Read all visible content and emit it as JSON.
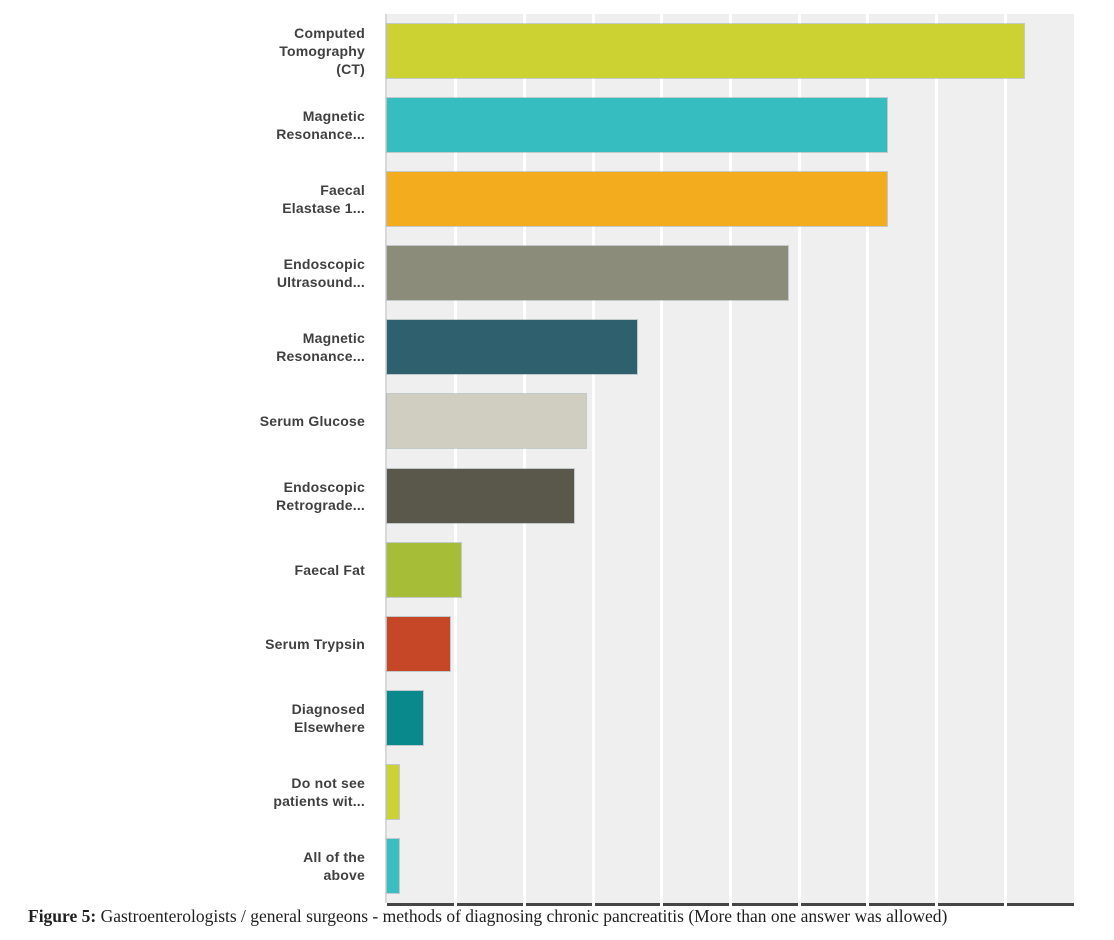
{
  "figure": {
    "caption_prefix": "Figure 5:",
    "caption_text": " Gastroenterologists / general surgeons - methods of diagnosing chronic pancreatitis (More than one answer was allowed)"
  },
  "chart_data": {
    "type": "bar",
    "orientation": "horizontal",
    "title": "",
    "xlabel": "",
    "ylabel": "",
    "categories": [
      "Computed Tomography (CT)",
      "Magnetic Resonance...",
      "Faecal Elastase 1...",
      "Endoscopic Ultrasound...",
      "Magnetic Resonance...",
      "Serum Glucose",
      "Endoscopic Retrograde...",
      "Faecal Fat",
      "Serum Trypsin",
      "Diagnosed Elsewhere",
      "Do not see patients wit...",
      "All of the above"
    ],
    "display_labels": [
      "Computed\nTomography\n(CT)",
      "Magnetic\nResonance...",
      "Faecal\nElastase 1...",
      "Endoscopic\nUltrasound...",
      "Magnetic\nResonance...",
      "Serum Glucose",
      "Endoscopic\nRetrograde...",
      "Faecal Fat",
      "Serum Trypsin",
      "Diagnosed\nElsewhere",
      "Do not see\npatients wit...",
      "All of the\nabove"
    ],
    "values": [
      92.7,
      72.8,
      72.8,
      58.4,
      36.4,
      29.0,
      27.2,
      10.8,
      9.2,
      5.3,
      1.8,
      1.8
    ],
    "values_unit": "percent",
    "colors": [
      "#cbd231",
      "#36bdbf",
      "#f3ac1e",
      "#8b8d7a",
      "#2f606e",
      "#cfcec0",
      "#5a584a",
      "#a6bd38",
      "#c64727",
      "#09898c",
      "#cbd231",
      "#39bfc1"
    ],
    "xlim": [
      0,
      100
    ],
    "gridline_interval_percent": 10,
    "grid": true,
    "legend": "none",
    "plot_bg_color": "#efefef",
    "gridline_color": "#ffffff",
    "y_axis_line_color": "#d9d9d9",
    "baseline_color": "#454545",
    "label_color": "#404040"
  }
}
